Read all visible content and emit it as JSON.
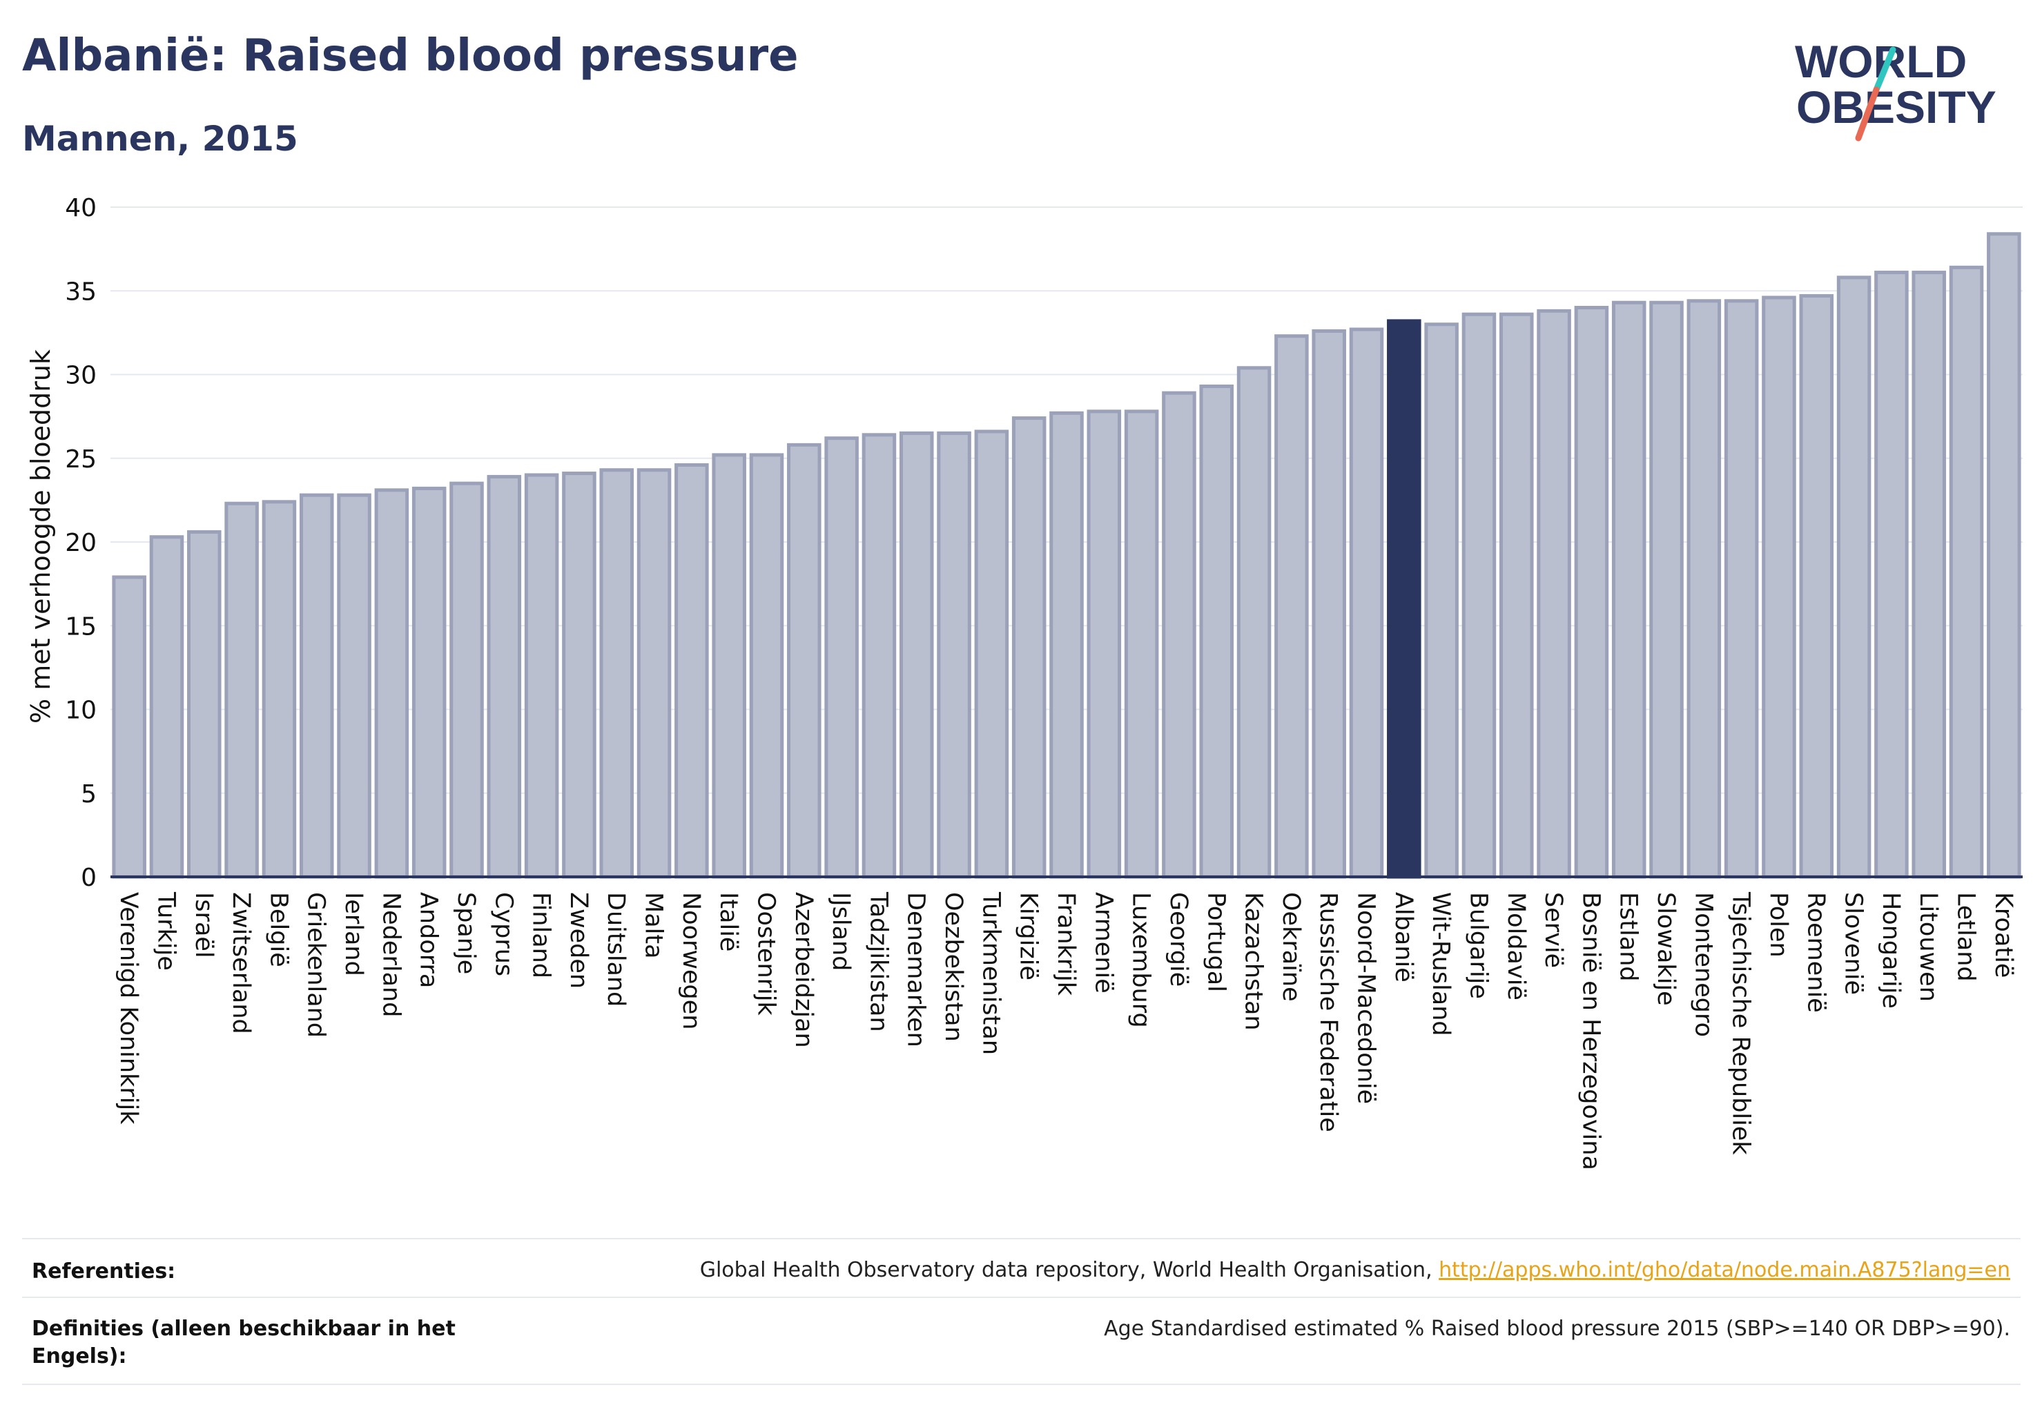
{
  "header": {
    "title": "Albanië: Raised blood pressure",
    "subtitle": "Mannen, 2015"
  },
  "logo": {
    "line1": "WORLD",
    "line2": "OBESITY",
    "colors": {
      "text": "#2a3660",
      "slash_teal": "#2fc6c0",
      "slash_coral": "#e86a55"
    }
  },
  "chart_data": {
    "type": "bar",
    "title": "",
    "xlabel": "",
    "ylabel": "% met verhoogde bloeddruk",
    "ylim": [
      0,
      40
    ],
    "yticks": [
      0,
      5,
      10,
      15,
      20,
      25,
      30,
      35,
      40
    ],
    "grid": true,
    "highlight": "Albanië",
    "colors": {
      "bar": "#babfcf",
      "bar_edge": "#9aa1b9",
      "highlight": "#2a3660",
      "axis": "#2a3660",
      "grid": "#e6e8ef"
    },
    "categories": [
      "Verenigd Koninkrijk",
      "Turkije",
      "Israël",
      "Zwitserland",
      "België",
      "Griekenland",
      "Ierland",
      "Nederland",
      "Andorra",
      "Spanje",
      "Cyprus",
      "Finland",
      "Zweden",
      "Duitsland",
      "Malta",
      "Noorwegen",
      "Italië",
      "Oostenrijk",
      "Azerbeidzjan",
      "IJsland",
      "Tadzjikistan",
      "Denemarken",
      "Oezbekistan",
      "Turkmenistan",
      "Kirgizië",
      "Frankrijk",
      "Armenië",
      "Luxemburg",
      "Georgië",
      "Portugal",
      "Kazachstan",
      "Oekraïne",
      "Russische Federatie",
      "Noord-Macedonië",
      "Albanië",
      "Wit-Rusland",
      "Bulgarije",
      "Moldavië",
      "Servië",
      "Bosnië en Herzegovina",
      "Estland",
      "Slowakije",
      "Montenegro",
      "Tsjechische Republiek",
      "Polen",
      "Roemenië",
      "Slovenië",
      "Hongarije",
      "Litouwen",
      "Letland",
      "Kroatië"
    ],
    "values": [
      17.9,
      20.3,
      20.6,
      22.3,
      22.4,
      22.8,
      22.8,
      23.1,
      23.2,
      23.5,
      23.9,
      24.0,
      24.1,
      24.3,
      24.3,
      24.6,
      25.2,
      25.2,
      25.8,
      26.2,
      26.4,
      26.5,
      26.5,
      26.6,
      27.4,
      27.7,
      27.8,
      27.8,
      28.9,
      29.3,
      30.4,
      32.3,
      32.6,
      32.7,
      33.2,
      33.0,
      33.6,
      33.6,
      33.8,
      34.0,
      34.3,
      34.3,
      34.4,
      34.4,
      34.6,
      34.7,
      35.8,
      36.1,
      36.1,
      36.4,
      38.4
    ]
  },
  "footer": {
    "references_label": "Referenties:",
    "references_text": "Global Health Observatory data repository, World Health Organisation, ",
    "references_link": "http://apps.who.int/gho/data/node.main.A875?lang=en",
    "definitions_label": "Definities (alleen beschikbaar in het Engels):",
    "definitions_text": "Age Standardised estimated % Raised blood pressure 2015 (SBP>=140 OR DBP>=90)."
  }
}
